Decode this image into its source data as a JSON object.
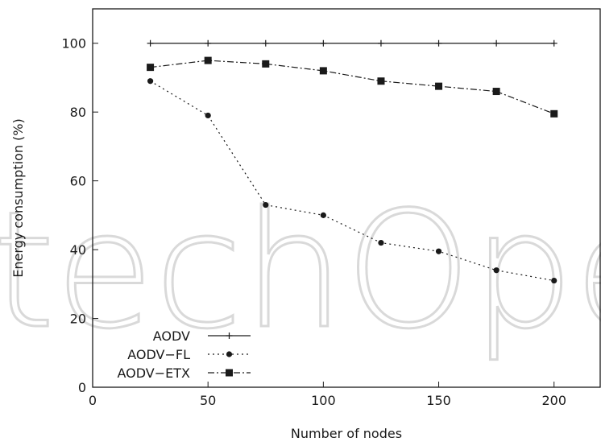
{
  "watermark_text": "techOpen",
  "chart_data": {
    "type": "line",
    "title": "",
    "xlabel": "Number of nodes",
    "ylabel": "Energy consumption (%)",
    "xlim": [
      0,
      220
    ],
    "ylim": [
      0,
      110
    ],
    "x_ticks": [
      0,
      50,
      100,
      150,
      200
    ],
    "y_ticks": [
      0,
      20,
      40,
      60,
      80,
      100
    ],
    "grid": false,
    "legend_position": "bottom-left",
    "x": [
      25,
      50,
      75,
      100,
      125,
      150,
      175,
      200
    ],
    "series": [
      {
        "name": "AODV",
        "values": [
          100,
          100,
          100,
          100,
          100,
          100,
          100,
          100
        ],
        "marker": "plus",
        "dash": "solid",
        "color": "#1a1a1a"
      },
      {
        "name": "AODV−FL",
        "values": [
          89,
          79,
          53,
          50,
          42,
          39.5,
          34,
          31
        ],
        "marker": "circle",
        "dash": "dotted",
        "color": "#1a1a1a"
      },
      {
        "name": "AODV−ETX",
        "values": [
          93,
          95,
          94,
          92,
          89,
          87.5,
          86,
          79.5
        ],
        "marker": "square",
        "dash": "dashdot",
        "color": "#1a1a1a"
      }
    ]
  }
}
